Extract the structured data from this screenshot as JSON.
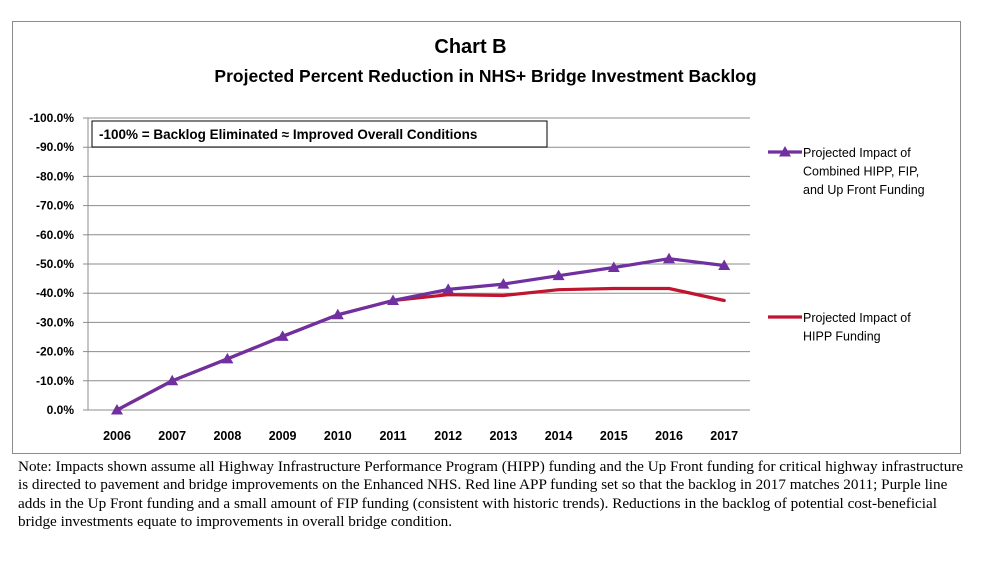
{
  "chart_data": {
    "type": "line",
    "title": "Chart B",
    "subtitle": "Projected Percent Reduction in NHS+ Bridge Investment Backlog",
    "categories": [
      "2006",
      "2007",
      "2008",
      "2009",
      "2010",
      "2011",
      "2012",
      "2013",
      "2014",
      "2015",
      "2016",
      "2017"
    ],
    "y_tick_labels": [
      "0.0%",
      "-10.0%",
      "-20.0%",
      "-30.0%",
      "-40.0%",
      "-50.0%",
      "-60.0%",
      "-70.0%",
      "-80.0%",
      "-90.0%",
      "-100.0%"
    ],
    "ylim": [
      0,
      -100
    ],
    "y_axis_inverted": true,
    "grid": true,
    "legend_position": "right",
    "annotation": "-100% = Backlog Eliminated ≈ Improved  Overall Conditions",
    "series": [
      {
        "name": "Projected Impact of Combined HIPP, FIP, and Up Front Funding",
        "name_lines": [
          "Projected Impact of",
          "Combined HIPP, FIP,",
          "and Up Front Funding"
        ],
        "color": "#7030a0",
        "marker": "triangle",
        "values": [
          0,
          -10,
          -17.5,
          -25.2,
          -32.6,
          -37.5,
          -41.3,
          -43.1,
          -46,
          -48.8,
          -51.8,
          -49.5
        ]
      },
      {
        "name": "Projected Impact of HIPP Funding",
        "name_lines": [
          "Projected Impact of",
          "HIPP Funding"
        ],
        "color": "#c0152f",
        "marker": "none",
        "values": [
          0,
          -10,
          -17.5,
          -25.2,
          -32.6,
          -37.5,
          -39.5,
          -39.2,
          -41.2,
          -41.6,
          -41.6,
          -37.5
        ]
      }
    ]
  },
  "note": "Note:  Impacts shown assume all Highway Infrastructure Performance Program (HIPP) funding and the Up Front funding for critical highway infrastructure is directed to pavement and bridge improvements on the Enhanced NHS.  Red line APP funding set so that the backlog in 2017 matches 2011; Purple line adds in the Up Front funding and a small amount of FIP funding (consistent with historic trends).   Reductions in the backlog of potential cost-beneficial bridge investments equate to improvements in overall bridge condition."
}
